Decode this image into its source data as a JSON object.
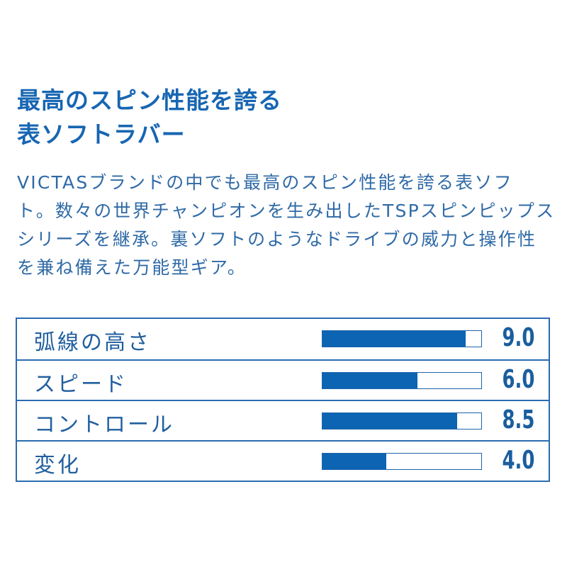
{
  "title": {
    "lines": [
      "最高のスピン性能を誇る",
      "表ソフトラバー"
    ]
  },
  "description": {
    "lines": [
      "VICTASブランドの中でも最高のスピン性能を誇る表ソフ",
      "ト。数々の世界チャンピオンを生み出したTSPスピンピップス",
      "シリーズを継承。裏ソフトのようなドライブの威力と操作性",
      "を兼ね備えた万能型ギア。"
    ]
  },
  "ratings": {
    "max": 10,
    "bar_color": "#0c64b2",
    "items": [
      {
        "label": "弧線の高さ",
        "value": 9.0,
        "display": "9.0"
      },
      {
        "label": "スピード",
        "value": 6.0,
        "display": "6.0"
      },
      {
        "label": "コントロール",
        "value": 8.5,
        "display": "8.5"
      },
      {
        "label": "変化",
        "value": 4.0,
        "display": "4.0"
      }
    ]
  }
}
